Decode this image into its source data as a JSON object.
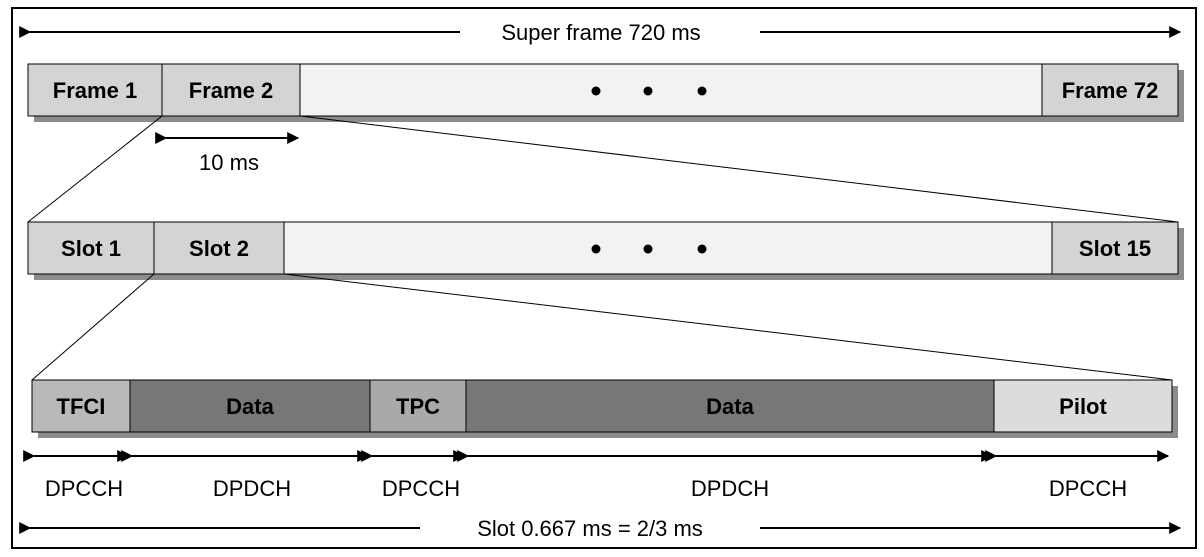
{
  "super_frame": {
    "label": "Super frame 720 ms",
    "frames": [
      "Frame 1",
      "Frame 2",
      "Frame 72"
    ],
    "frame_duration_label": "10 ms"
  },
  "frame_detail": {
    "slots": [
      "Slot 1",
      "Slot 2",
      "Slot 15"
    ]
  },
  "slot_detail": {
    "fields": [
      "TFCI",
      "Data",
      "TPC",
      "Data",
      "Pilot"
    ],
    "channels": [
      "DPCCH",
      "DPDCH",
      "DPCCH",
      "DPDCH",
      "DPCCH"
    ],
    "duration_label": "Slot 0.667 ms = 2/3 ms"
  },
  "colors": {
    "light_box": "#d4d4d4",
    "empty_box": "#f2f2f2",
    "dark_data": "#777777",
    "tpc": "#a9a9a9",
    "pilot": "#dcdcdc",
    "shadow": "#8c8c8c"
  }
}
